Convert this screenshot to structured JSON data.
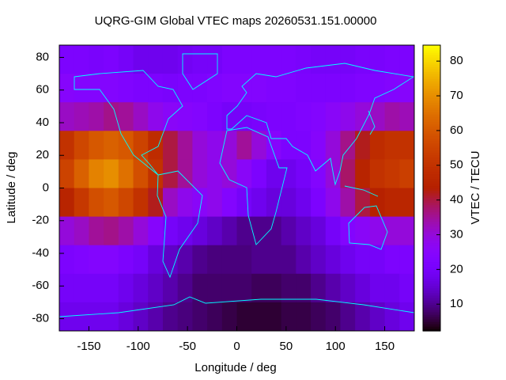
{
  "chart_data": {
    "type": "heatmap",
    "title": "UQRG-GIM Global VTEC maps 20260531.151.00000",
    "x_label": "Longitude / deg",
    "y_label": "Latitude / deg",
    "colorbar_label": "VTEC / TECU",
    "x": [
      -172.5,
      -157.5,
      -142.5,
      -127.5,
      -112.5,
      -97.5,
      -82.5,
      -67.5,
      -52.5,
      -37.5,
      -22.5,
      -7.5,
      7.5,
      22.5,
      37.5,
      52.5,
      67.5,
      82.5,
      97.5,
      112.5,
      127.5,
      142.5,
      157.5,
      172.5
    ],
    "y": [
      78.75,
      61.25,
      43.75,
      26.25,
      8.75,
      -8.75,
      -26.25,
      -43.75,
      -61.25,
      -78.75
    ],
    "z": [
      [
        22,
        22,
        21,
        22,
        20,
        18,
        18,
        18,
        19,
        20,
        20,
        22,
        22,
        22,
        22,
        22,
        21,
        20,
        20,
        20,
        21,
        21,
        22,
        22
      ],
      [
        25,
        24,
        24,
        24,
        23,
        22,
        22,
        21,
        22,
        22,
        23,
        24,
        24,
        24,
        23,
        23,
        22,
        22,
        22,
        22,
        23,
        23,
        24,
        25
      ],
      [
        32,
        33,
        34,
        36,
        35,
        32,
        28,
        26,
        25,
        24,
        22,
        20,
        20,
        21,
        22,
        22,
        23,
        24,
        26,
        28,
        30,
        32,
        34,
        33
      ],
      [
        50,
        56,
        60,
        62,
        60,
        55,
        48,
        40,
        35,
        30,
        28,
        30,
        35,
        30,
        25,
        22,
        22,
        25,
        30,
        36,
        42,
        48,
        50,
        50
      ],
      [
        55,
        62,
        68,
        70,
        65,
        58,
        50,
        40,
        35,
        30,
        28,
        30,
        26,
        22,
        18,
        18,
        20,
        24,
        30,
        38,
        45,
        50,
        52,
        54
      ],
      [
        45,
        52,
        58,
        60,
        56,
        50,
        42,
        32,
        28,
        26,
        28,
        24,
        20,
        18,
        16,
        16,
        18,
        22,
        28,
        34,
        40,
        44,
        46,
        46
      ],
      [
        30,
        32,
        35,
        36,
        34,
        30,
        25,
        20,
        18,
        16,
        14,
        12,
        10,
        10,
        10,
        12,
        14,
        16,
        20,
        24,
        26,
        28,
        30,
        30
      ],
      [
        22,
        23,
        24,
        24,
        22,
        20,
        16,
        14,
        12,
        10,
        9,
        9,
        9,
        10,
        10,
        10,
        12,
        14,
        16,
        18,
        20,
        20,
        22,
        22
      ],
      [
        20,
        20,
        20,
        20,
        18,
        16,
        14,
        12,
        10,
        8,
        8,
        8,
        8,
        7,
        7,
        8,
        8,
        10,
        12,
        14,
        16,
        18,
        18,
        20
      ],
      [
        18,
        18,
        18,
        18,
        16,
        14,
        12,
        10,
        9,
        8,
        7,
        6,
        5,
        5,
        5,
        6,
        6,
        7,
        8,
        10,
        12,
        14,
        16,
        18
      ]
    ],
    "xlim": [
      -180,
      180
    ],
    "ylim": [
      -87.5,
      87.5
    ],
    "zlim": [
      2.3,
      84.6
    ],
    "xticks": [
      -150,
      -100,
      -50,
      0,
      50,
      100,
      150
    ],
    "yticks": [
      -80,
      -60,
      -40,
      -20,
      0,
      20,
      40,
      60,
      80
    ],
    "zticks": [
      10,
      20,
      30,
      40,
      50,
      60,
      70,
      80
    ],
    "coastline_color": "#00ffff"
  }
}
